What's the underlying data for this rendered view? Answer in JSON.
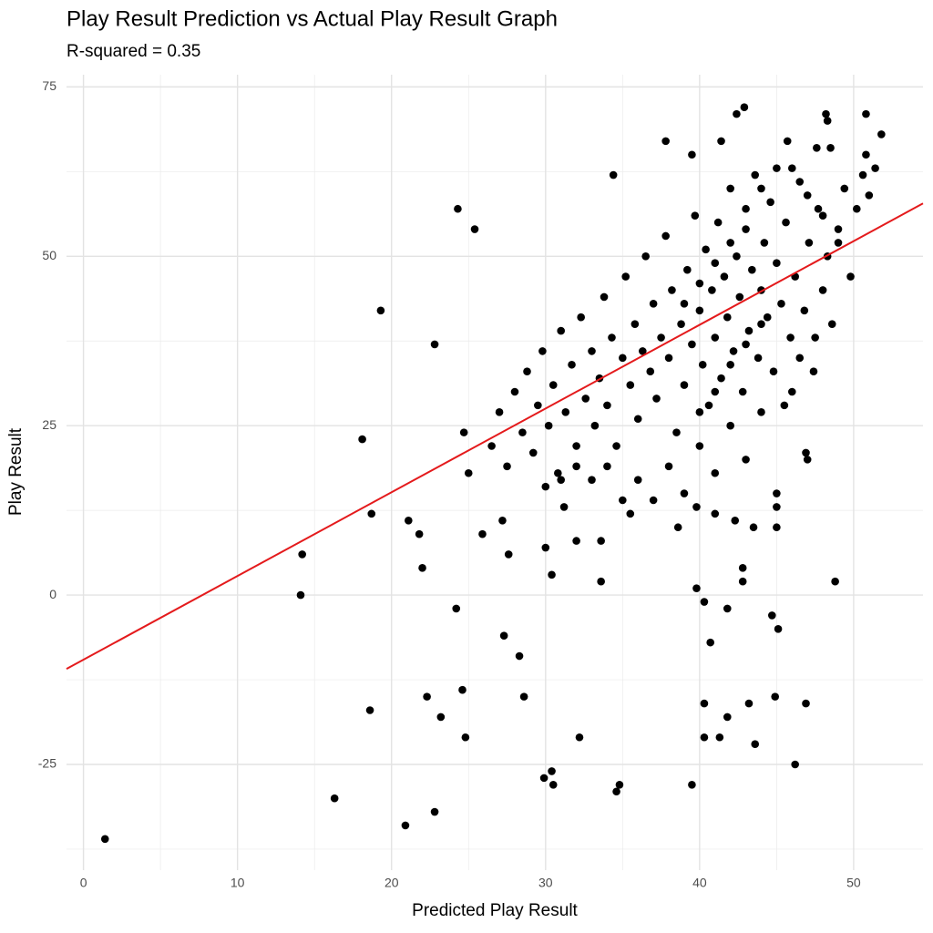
{
  "chart_data": {
    "type": "scatter",
    "title": "Play Result Prediction vs Actual Play Result Graph",
    "subtitle": "R-squared = 0.35",
    "x_label": "Predicted Play Result",
    "y_label": "Play Result",
    "color": "#000000",
    "grid": true,
    "xlim": [
      -1.1,
      54.5
    ],
    "ylim": [
      -40.6,
      76.8
    ],
    "xticks": [
      0,
      10,
      20,
      30,
      40,
      50
    ],
    "yticks": [
      -25,
      0,
      25,
      50,
      75
    ],
    "minor_xticks": [
      5,
      15,
      25,
      35,
      45
    ],
    "minor_yticks": [
      -37.5,
      -12.5,
      12.5,
      37.5,
      62.5
    ],
    "regression_line": {
      "color": "#e41a1c",
      "x": [
        -1.1,
        54.5
      ],
      "values": [
        -10.9,
        57.8
      ]
    },
    "x": [
      1.4,
      14.1,
      14.2,
      16.3,
      18.1,
      18.7,
      18.6,
      19.3,
      20.9,
      21.1,
      21.8,
      22,
      22.3,
      22.8,
      22.8,
      23.2,
      24.3,
      24.2,
      24.6,
      24.8,
      24.7,
      25.4,
      25,
      25.9,
      27.2,
      27.3,
      27.6,
      28.3,
      28.6,
      29.9,
      30,
      30.4,
      30.4,
      30.5,
      31.2,
      32,
      32.2,
      33.6,
      33.6,
      34.6,
      34.8,
      34.4,
      35,
      39.5,
      39.8,
      40.3,
      40.7,
      40.3,
      40.3,
      41.3,
      41.8,
      41.8,
      42.8,
      42.8,
      43.2,
      43.6,
      44.7,
      45.1,
      44.9,
      46.2,
      46.9,
      48.8,
      45,
      45,
      45,
      46.9,
      47,
      42.9,
      42.4,
      48.2,
      48.3,
      50.8,
      51.8,
      37.8,
      41.4,
      45.7,
      39.5,
      47.6,
      48.5,
      50.8,
      26.5,
      27,
      27.5,
      28,
      28.5,
      28.8,
      29.2,
      29.5,
      29.8,
      30.2,
      30.5,
      30.8,
      31,
      31.3,
      31.7,
      32,
      32.3,
      32.6,
      33,
      33.2,
      33.5,
      33.8,
      34,
      34.3,
      34.6,
      35,
      35.2,
      35.5,
      35.8,
      36,
      36.3,
      36.5,
      36.8,
      37,
      37.2,
      37.5,
      37.8,
      38,
      38.2,
      38.5,
      38.8,
      39,
      39.2,
      39.5,
      39.7,
      40,
      40.2,
      40.4,
      40.6,
      40.8,
      41,
      41.2,
      41.4,
      41.6,
      41.8,
      42,
      42.2,
      42.4,
      42.6,
      42.8,
      43,
      43.2,
      43.4,
      43.6,
      43.8,
      44,
      44.2,
      44.4,
      44.6,
      44.8,
      45,
      45.3,
      45.6,
      45.9,
      46.2,
      46.5,
      46.8,
      47.1,
      47.4,
      47.7,
      48,
      48.3,
      48.6,
      49,
      49.4,
      49.8,
      50.2,
      50.6,
      51,
      51.4,
      38,
      39,
      40,
      41,
      42,
      43,
      44,
      36,
      37,
      35.5,
      38.6,
      39.8,
      41,
      42.3,
      43.5,
      40,
      41,
      42,
      43,
      44,
      39,
      40,
      41,
      42,
      43,
      44,
      45,
      46,
      47,
      48,
      49,
      46,
      45.5,
      46.5,
      47.5,
      34,
      33,
      32,
      31,
      30
    ],
    "values": [
      -36,
      0,
      6,
      -30,
      23,
      12,
      -17,
      42,
      -34,
      11,
      9,
      4,
      -15,
      37,
      -32,
      -18,
      57,
      -2,
      -14,
      -21,
      24,
      54,
      18,
      9,
      11,
      -6,
      6,
      -9,
      -15,
      -27,
      7,
      3,
      -26,
      -28,
      13,
      8,
      -21,
      2,
      8,
      -29,
      -28,
      62,
      14,
      -28,
      1,
      -1,
      -7,
      -16,
      -21,
      -21,
      -18,
      -2,
      4,
      2,
      -16,
      -22,
      -3,
      -5,
      -15,
      -25,
      -16,
      2,
      15,
      13,
      10,
      21,
      20,
      72,
      71,
      71,
      70,
      71,
      68,
      67,
      67,
      67,
      65,
      66,
      66,
      65,
      22,
      27,
      19,
      30,
      24,
      33,
      21,
      28,
      36,
      25,
      31,
      18,
      39,
      27,
      34,
      22,
      41,
      29,
      36,
      25,
      32,
      44,
      28,
      38,
      22,
      35,
      47,
      31,
      40,
      26,
      36,
      50,
      33,
      43,
      29,
      38,
      53,
      35,
      45,
      24,
      40,
      31,
      48,
      37,
      56,
      42,
      34,
      51,
      28,
      45,
      38,
      55,
      32,
      47,
      41,
      60,
      36,
      50,
      44,
      30,
      54,
      39,
      48,
      62,
      35,
      45,
      52,
      41,
      58,
      33,
      49,
      43,
      55,
      38,
      47,
      61,
      42,
      52,
      33,
      57,
      45,
      50,
      40,
      54,
      60,
      47,
      57,
      62,
      59,
      63,
      19,
      15,
      22,
      18,
      25,
      20,
      27,
      17,
      14,
      12,
      10,
      13,
      12,
      11,
      10,
      27,
      30,
      34,
      37,
      40,
      43,
      46,
      49,
      52,
      57,
      60,
      63,
      63,
      59,
      56,
      52,
      30,
      28,
      35,
      38,
      19,
      17,
      19,
      17,
      16
    ]
  }
}
